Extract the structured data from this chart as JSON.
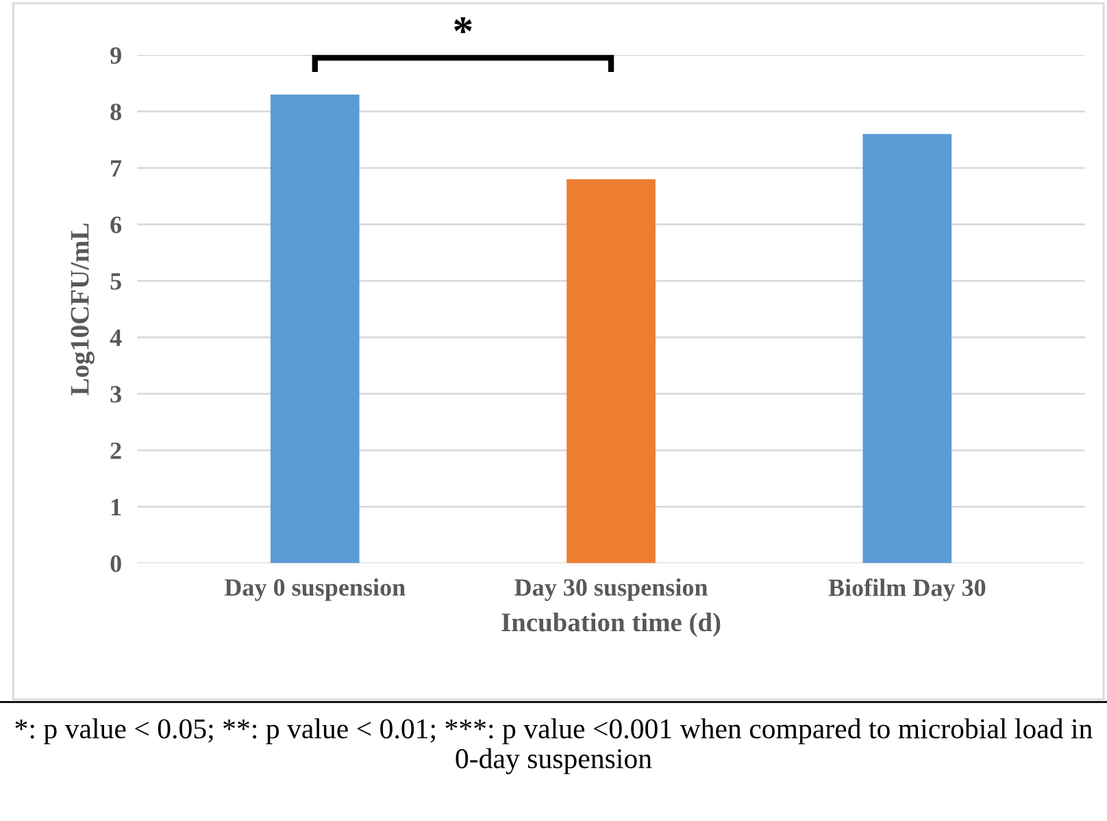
{
  "chart_data": {
    "type": "bar",
    "categories": [
      "Day 0 suspension",
      "Day 30 suspension",
      "Biofilm Day 30"
    ],
    "values": [
      8.3,
      6.8,
      7.6
    ],
    "colors": [
      "#5b9bd5",
      "#ed7d31",
      "#5b9bd5"
    ],
    "xlabel": "Incubation time (d)",
    "ylabel": "Log10CFU/mL",
    "ylim": [
      0,
      9
    ],
    "yticks": [
      0,
      1,
      2,
      3,
      4,
      5,
      6,
      7,
      8,
      9
    ],
    "grid": "y",
    "annotations": [
      "*",
      "*: p value < 0.05; **: p value < 0.01; ***: p value <0.001 when compared to microbial load in 0-day suspension"
    ]
  }
}
